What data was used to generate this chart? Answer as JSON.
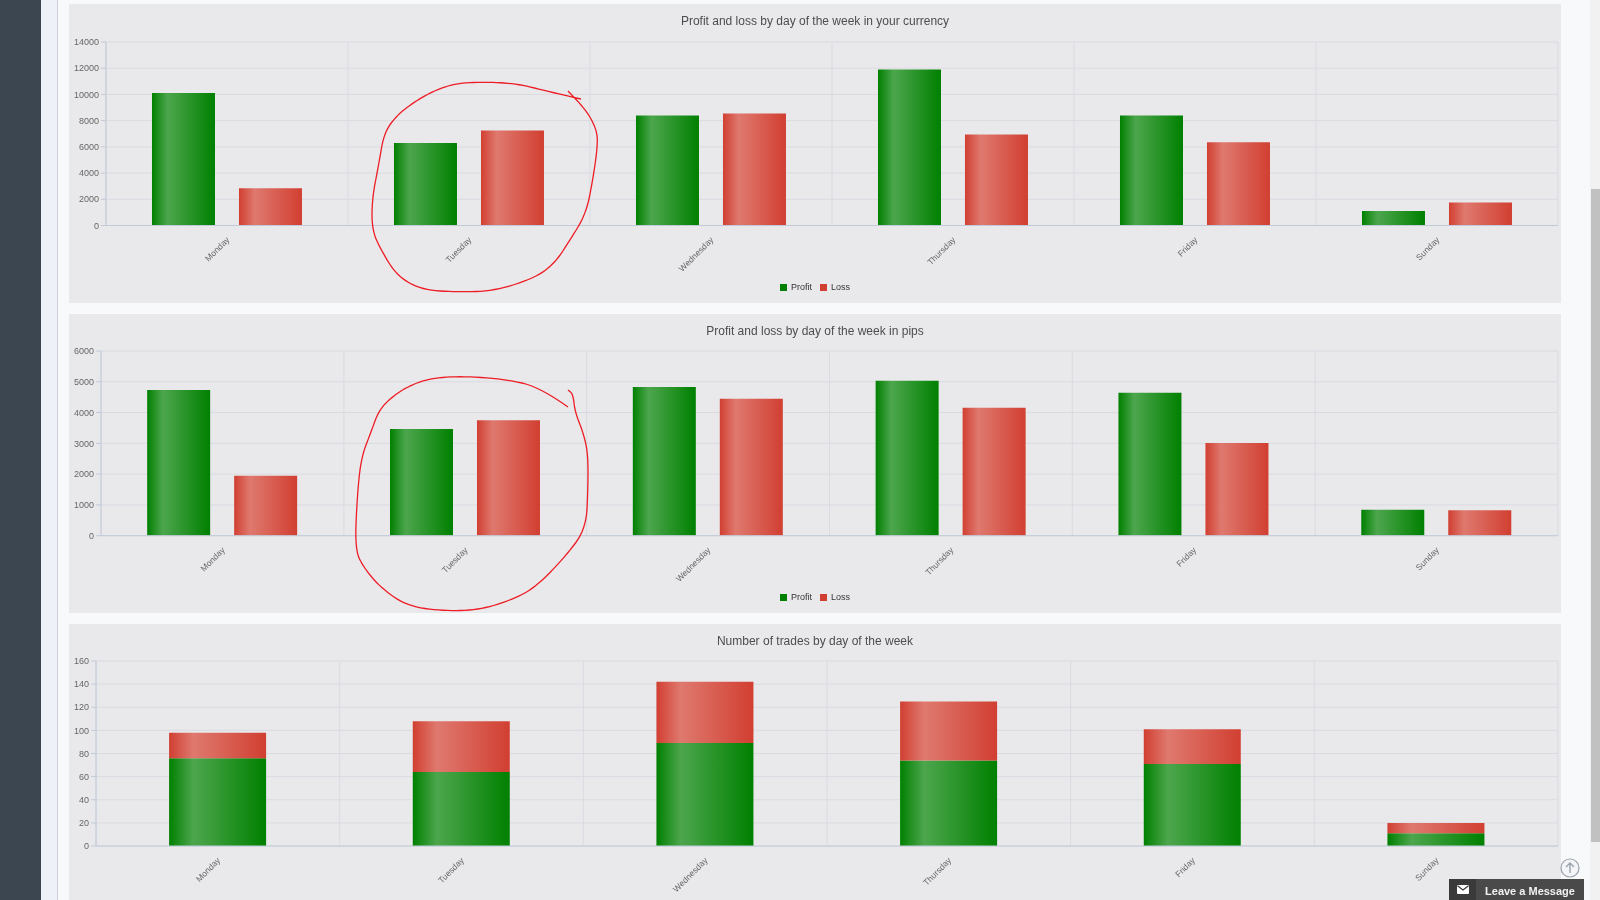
{
  "chart_data": [
    {
      "type": "bar",
      "title": "Profit and loss by day of the week in your currency",
      "categories": [
        "Monday",
        "Tuesday",
        "Wednesday",
        "Thursday",
        "Friday",
        "Sunday"
      ],
      "series": [
        {
          "name": "Profit",
          "color": "#008000",
          "values": [
            10100,
            6300,
            8400,
            11900,
            8400,
            1100
          ]
        },
        {
          "name": "Loss",
          "color": "#d13f31",
          "values": [
            2850,
            7250,
            8550,
            6950,
            6350,
            1750
          ]
        }
      ],
      "ylim": [
        0,
        14000
      ],
      "yticks": [
        0,
        2000,
        4000,
        6000,
        8000,
        10000,
        12000,
        14000
      ],
      "grid": true,
      "legend": "bottom"
    },
    {
      "type": "bar",
      "title": "Profit and loss by day of the week in pips",
      "categories": [
        "Monday",
        "Tuesday",
        "Wednesday",
        "Thursday",
        "Friday",
        "Sunday"
      ],
      "series": [
        {
          "name": "Profit",
          "color": "#008000",
          "values": [
            4730,
            3470,
            4830,
            5030,
            4640,
            840
          ]
        },
        {
          "name": "Loss",
          "color": "#d13f31",
          "values": [
            1950,
            3750,
            4450,
            4160,
            3010,
            830
          ]
        }
      ],
      "ylim": [
        0,
        6000
      ],
      "yticks": [
        0,
        1000,
        2000,
        3000,
        4000,
        5000,
        6000
      ],
      "grid": true,
      "legend": "bottom"
    },
    {
      "type": "bar",
      "title": "Number of trades by day of the week",
      "categories": [
        "Monday",
        "Tuesday",
        "Wednesday",
        "Thursday",
        "Friday",
        "Sunday"
      ],
      "stacked": true,
      "series": [
        {
          "color": "#008000",
          "values": [
            76,
            64,
            89,
            74,
            71,
            11
          ]
        },
        {
          "color": "#d13f31",
          "values": [
            22,
            44,
            53,
            51,
            30,
            9
          ]
        }
      ],
      "ylim": [
        0,
        160
      ],
      "yticks": [
        0,
        20,
        40,
        60,
        80,
        100,
        120,
        140,
        160
      ],
      "grid": true
    },
    {
      "type": "other",
      "annotations": [
        "Leave a Message"
      ]
    }
  ]
}
